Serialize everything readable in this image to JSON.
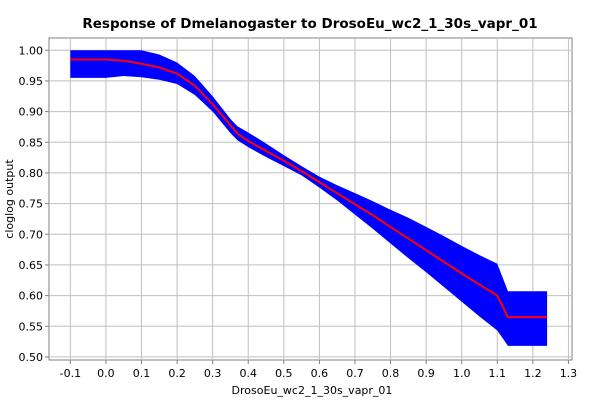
{
  "chart_data": {
    "type": "area",
    "title": "Response of Dmelanogaster to DrosoEu_wc2_1_30s_vapr_01",
    "xlabel": "DrosoEu_wc2_1_30s_vapr_01",
    "ylabel": "cloglog output",
    "xlim": [
      -0.16,
      1.31
    ],
    "ylim": [
      0.495,
      1.02
    ],
    "x_ticks": [
      -0.1,
      0.0,
      0.1,
      0.2,
      0.3,
      0.4,
      0.5,
      0.6,
      0.7,
      0.8,
      0.9,
      1.0,
      1.1,
      1.2,
      1.3
    ],
    "x_tick_labels": [
      "-0.1",
      "0.0",
      "0.1",
      "0.2",
      "0.3",
      "0.4",
      "0.5",
      "0.6",
      "0.7",
      "0.8",
      "0.9",
      "1.0",
      "1.1",
      "1.2",
      "1.3"
    ],
    "y_ticks": [
      0.5,
      0.55,
      0.6,
      0.65,
      0.7,
      0.75,
      0.8,
      0.85,
      0.9,
      0.95,
      1.0
    ],
    "y_tick_labels": [
      "0.50",
      "0.55",
      "0.60",
      "0.65",
      "0.70",
      "0.75",
      "0.80",
      "0.85",
      "0.90",
      "0.95",
      "1.00"
    ],
    "grid": true,
    "colors": {
      "band": "#0000ff",
      "line": "#ff0000",
      "grid": "#c0c0c0",
      "frame": "#808080"
    },
    "x": [
      -0.1,
      0.0,
      0.05,
      0.1,
      0.15,
      0.2,
      0.25,
      0.3,
      0.35,
      0.37,
      0.4,
      0.45,
      0.5,
      0.55,
      0.6,
      0.65,
      0.7,
      0.75,
      0.8,
      0.85,
      0.9,
      0.95,
      1.0,
      1.05,
      1.1,
      1.13,
      1.18,
      1.24
    ],
    "series": [
      {
        "values": [
          0.985,
          0.985,
          0.983,
          0.978,
          0.972,
          0.962,
          0.942,
          0.912,
          0.878,
          0.864,
          0.852,
          0.836,
          0.82,
          0.803,
          0.785,
          0.767,
          0.749,
          0.731,
          0.712,
          0.693,
          0.674,
          0.655,
          0.636,
          0.618,
          0.6,
          0.565,
          0.565,
          0.565
        ]
      },
      {
        "values": [
          1.0,
          1.0,
          1.0,
          1.0,
          0.993,
          0.98,
          0.958,
          0.925,
          0.888,
          0.876,
          0.866,
          0.848,
          0.829,
          0.811,
          0.794,
          0.78,
          0.767,
          0.754,
          0.74,
          0.727,
          0.712,
          0.697,
          0.681,
          0.666,
          0.652,
          0.607,
          0.607,
          0.607
        ]
      },
      {
        "values": [
          0.955,
          0.955,
          0.958,
          0.956,
          0.952,
          0.945,
          0.927,
          0.9,
          0.865,
          0.853,
          0.842,
          0.826,
          0.811,
          0.796,
          0.776,
          0.755,
          0.732,
          0.709,
          0.685,
          0.661,
          0.638,
          0.614,
          0.59,
          0.566,
          0.543,
          0.518,
          0.518,
          0.518
        ]
      }
    ]
  }
}
